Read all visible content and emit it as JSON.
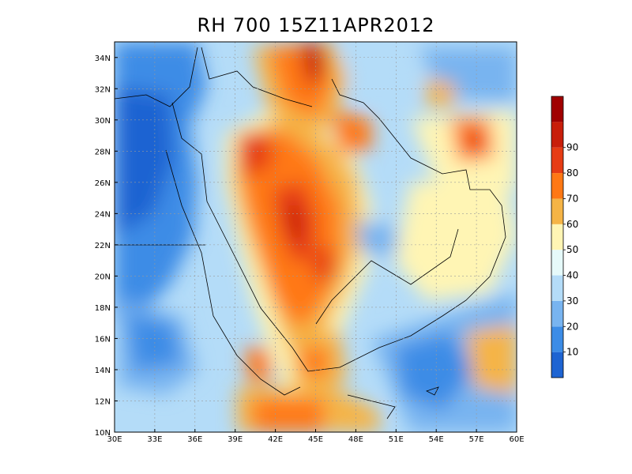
{
  "title": "RH 700 15Z11APR2012",
  "map": {
    "lon_range": [
      30,
      60
    ],
    "lat_range": [
      10,
      35
    ],
    "lon_ticks": [
      "30E",
      "33E",
      "36E",
      "39E",
      "42E",
      "45E",
      "48E",
      "51E",
      "54E",
      "57E",
      "60E"
    ],
    "lat_ticks": [
      "10N",
      "12N",
      "14N",
      "16N",
      "18N",
      "20N",
      "22N",
      "24N",
      "26N",
      "28N",
      "30N",
      "32N",
      "34N"
    ],
    "grid": true
  },
  "colorbar": {
    "labels": [
      "10",
      "20",
      "30",
      "40",
      "50",
      "60",
      "70",
      "80",
      "90"
    ],
    "colors": [
      "#1e64d2",
      "#3c8ce6",
      "#78b4f0",
      "#b4dcf8",
      "#e6fafa",
      "#fff5b4",
      "#f5b446",
      "#ff7814",
      "#e63c14",
      "#c81e0a",
      "#a00000"
    ]
  }
}
